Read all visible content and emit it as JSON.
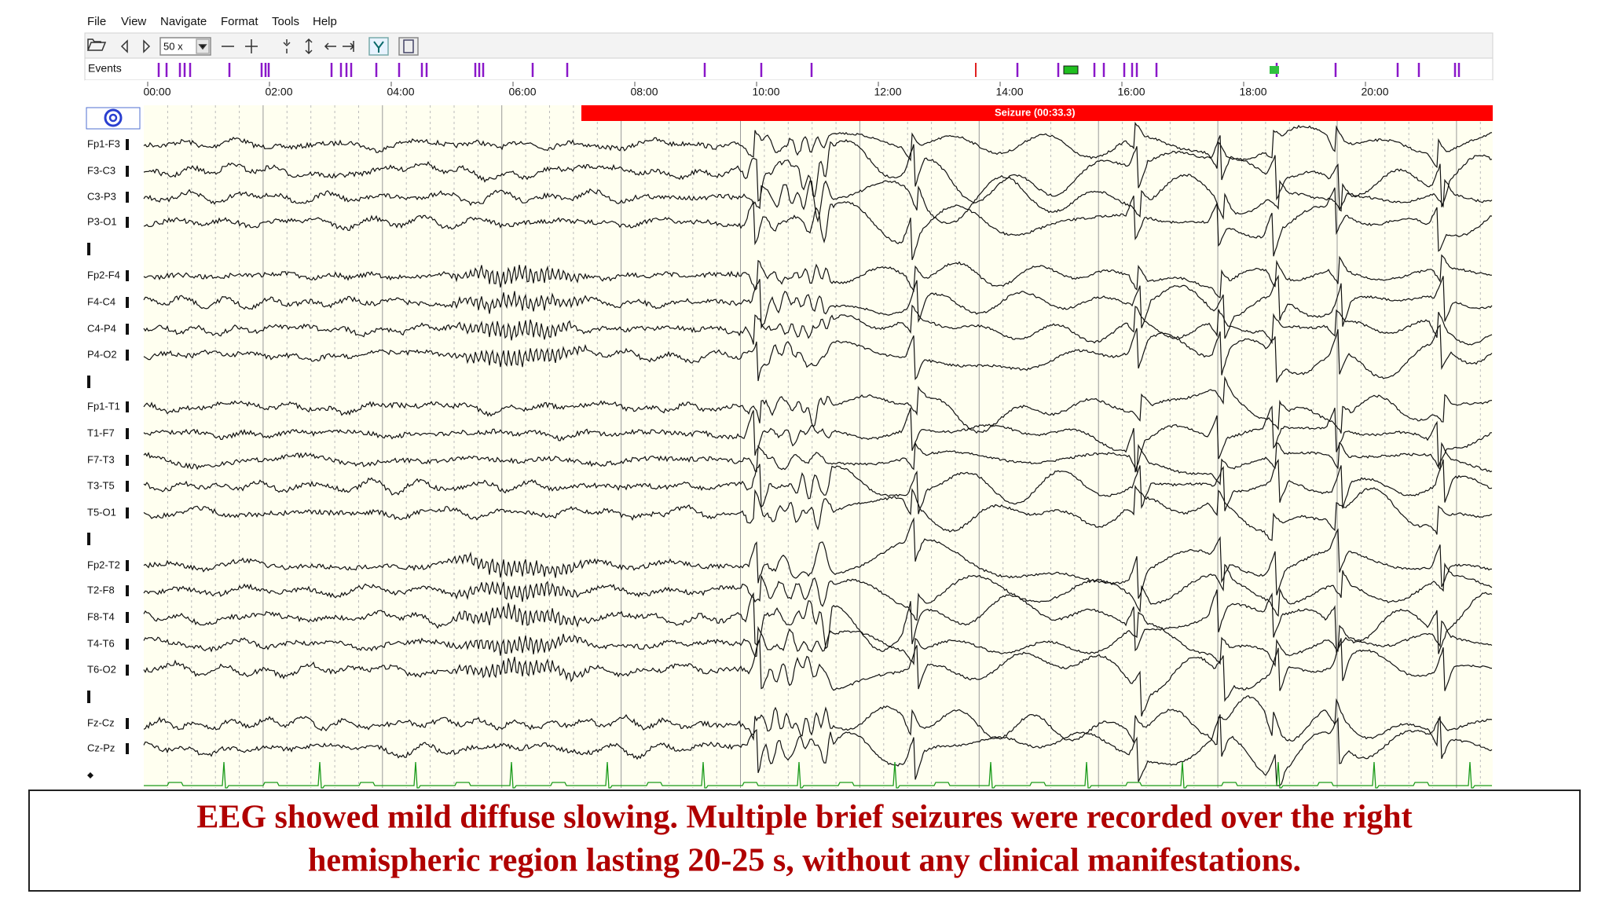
{
  "menu": [
    "File",
    "View",
    "Navigate",
    "Format",
    "Tools",
    "Help"
  ],
  "toolbar": {
    "zoom": "50 x"
  },
  "events_label": "Events",
  "timeline": [
    "00:00",
    "02:00",
    "04:00",
    "06:00",
    "08:00",
    "10:00",
    "12:00",
    "14:00",
    "16:00",
    "18:00",
    "20:00"
  ],
  "seizure_label": "Seizure (00:33.3)",
  "channels": [
    "Fp1-F3",
    "F3-C3",
    "C3-P3",
    "P3-O1",
    "Fp2-F4",
    "F4-C4",
    "C4-P4",
    "P4-O2",
    "Fp1-T1",
    "T1-F7",
    "F7-T3",
    "T3-T5",
    "T5-O1",
    "Fp2-T2",
    "T2-F8",
    "F8-T4",
    "T4-T6",
    "T6-O2",
    "Fz-Cz",
    "Cz-Pz"
  ],
  "caption": [
    "EEG showed mild diffuse slowing. Multiple brief  seizures were recorded over the right",
    "hemispheric region lasting 20-25 s, without any clinical manifestations."
  ]
}
